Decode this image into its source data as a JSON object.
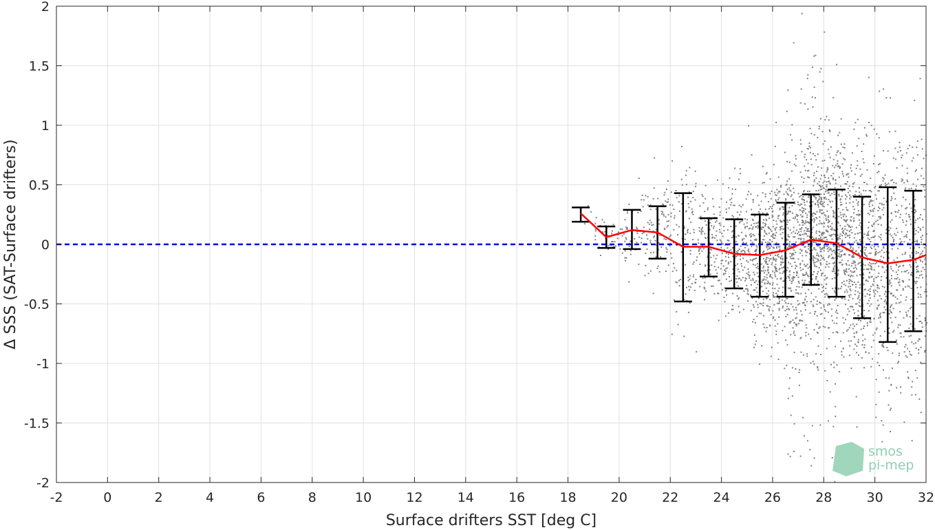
{
  "chart_data": {
    "type": "scatter",
    "title": "",
    "xlabel": "Surface drifters SST [deg C]",
    "ylabel": "Δ SSS (SAT-Surface drifters)",
    "xlim": [
      -2,
      32
    ],
    "ylim": [
      -2,
      2
    ],
    "xticks": [
      -2,
      0,
      2,
      4,
      6,
      8,
      10,
      12,
      14,
      16,
      18,
      20,
      22,
      24,
      26,
      28,
      30,
      32
    ],
    "yticks": [
      -2,
      -1.5,
      -1,
      -0.5,
      0,
      0.5,
      1,
      1.5,
      2
    ],
    "xtick_labels": [
      "-2",
      "0",
      "2",
      "4",
      "6",
      "8",
      "10",
      "12",
      "14",
      "16",
      "18",
      "20",
      "22",
      "24",
      "26",
      "28",
      "30",
      "32"
    ],
    "ytick_labels": [
      "-2",
      "-1.5",
      "-1",
      "-0.5",
      "0",
      "0.5",
      "1",
      "1.5",
      "2"
    ],
    "grid": true,
    "colors": {
      "scatter": "#808080",
      "mean_line": "#ff0000",
      "error_bars": "#000000",
      "zero_line": "#0000dd",
      "grid": "#e0e0e0",
      "axes": "#262626"
    },
    "scatter_cloud": {
      "description_values": "dense cloud of points, x range ~18.5 to 32, y range -2 to 2",
      "x_range": [
        18.5,
        32
      ],
      "y_range": [
        -2,
        2
      ],
      "densest_x": 27.5
    },
    "binned_stats": {
      "x": [
        18.5,
        19.5,
        20.5,
        21.5,
        22.5,
        23.5,
        24.5,
        25.5,
        26.5,
        27.5,
        28.5,
        29.5,
        30.5,
        31.5
      ],
      "mean": [
        0.26,
        0.06,
        0.12,
        0.1,
        -0.02,
        -0.02,
        -0.08,
        -0.09,
        -0.05,
        0.04,
        0.01,
        -0.11,
        -0.16,
        -0.13
      ],
      "upper": [
        0.31,
        0.15,
        0.29,
        0.32,
        0.43,
        0.22,
        0.21,
        0.25,
        0.35,
        0.42,
        0.46,
        0.4,
        0.48,
        0.45
      ],
      "lower": [
        0.19,
        -0.03,
        -0.04,
        -0.12,
        -0.48,
        -0.27,
        -0.37,
        -0.44,
        -0.44,
        -0.34,
        -0.44,
        -0.62,
        -0.82,
        -0.73
      ]
    },
    "mean_line_end": {
      "x": 32,
      "y": -0.09
    },
    "reference_line": {
      "y": 0,
      "style": "dashed"
    }
  },
  "logo": {
    "line1": "smos",
    "line2": "pi-mep"
  }
}
